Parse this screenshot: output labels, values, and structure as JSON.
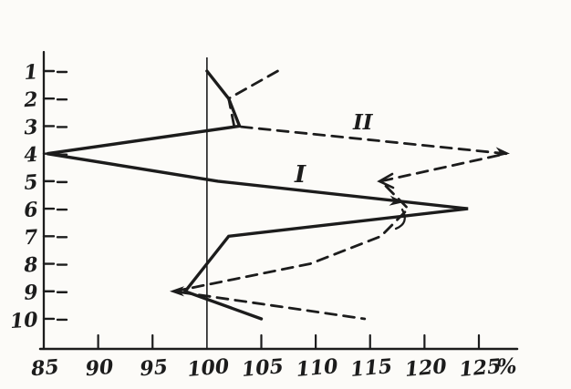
{
  "colors": {
    "ink": "#1c1c1c",
    "paper": "#fcfbf8"
  },
  "chart_data": {
    "type": "line",
    "title": "",
    "description": "Hand-drawn scanned profile chart: two curves of % values (I solid, II dashed) across ordinal levels 1-10 listed down the vertical axis, with a vertical reference line at 100%",
    "categories": [
      "1",
      "2",
      "3",
      "4",
      "5",
      "6",
      "7",
      "8",
      "9",
      "10"
    ],
    "categories_axis": "vertical, level 1 at top, level 10 at bottom",
    "x_ticks": [
      85,
      90,
      95,
      100,
      105,
      110,
      115,
      120,
      125
    ],
    "x_unit_label": "%",
    "xlim": [
      85,
      128
    ],
    "reference_line_x": 100,
    "grid": "off",
    "legend": "inline curve labels I and II",
    "series": [
      {
        "name": "I",
        "style": "solid",
        "values": [
          100,
          102,
          103,
          85.3,
          101,
          124,
          102,
          100,
          98,
          105
        ]
      },
      {
        "name": "II",
        "style": "dashed",
        "values": [
          106.5,
          102,
          102.5,
          127.5,
          116,
          118.5,
          116,
          109.5,
          97,
          114.5
        ]
      }
    ],
    "annotations": [
      {
        "type": "series-label",
        "label": "I"
      },
      {
        "type": "series-label",
        "label": "II"
      },
      {
        "type": "arrowhead",
        "on": "series I between levels 5 and 6",
        "direction": "right"
      },
      {
        "type": "arrowhead",
        "on": "series II at level 4 peak",
        "direction": "right"
      },
      {
        "type": "chevron",
        "on": "series II at level 5",
        "direction": "left"
      },
      {
        "type": "arrowhead",
        "on": "series II at level 9",
        "direction": "left"
      }
    ]
  }
}
